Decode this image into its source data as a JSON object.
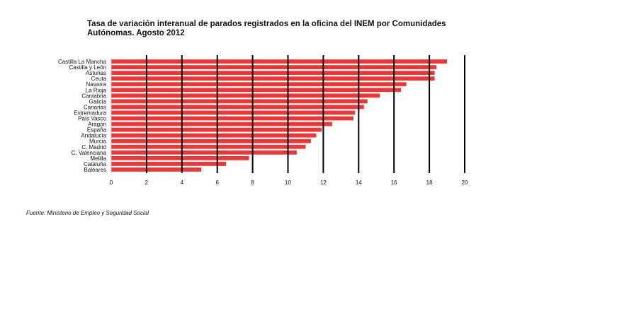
{
  "chart_data": {
    "type": "bar",
    "orientation": "horizontal",
    "title_lines": [
      "Tasa de variación interanual de parados registrados en la oficina del INEM por Comunidades",
      "Autónomas.  Agosto 2012"
    ],
    "categories": [
      "Castilla La Mancha",
      "Castilla y León",
      "Asturias",
      "Ceuta",
      "Navarra",
      "La Rioja",
      "Cantabria",
      "Galicia",
      "Canarias",
      "Extremadura",
      "País Vasco",
      "Aragón",
      "España",
      "Andalucía",
      "Murcia",
      "C. Madrid",
      "C. Valenciana",
      "Melilla",
      "Cataluña",
      "Baleares"
    ],
    "values": [
      19.0,
      18.4,
      18.3,
      18.3,
      16.7,
      16.4,
      15.2,
      14.5,
      14.3,
      13.8,
      13.7,
      12.5,
      11.9,
      11.6,
      11.3,
      11.0,
      10.5,
      7.8,
      6.5,
      5.1
    ],
    "xlim": [
      0,
      20
    ],
    "xticks": [
      0,
      2,
      4,
      6,
      8,
      10,
      12,
      14,
      16,
      18,
      20
    ],
    "grid": "vertical",
    "bar_color": "#e8393a",
    "source": "Fuente: Ministerio de Empleo y Seguridad Social"
  }
}
